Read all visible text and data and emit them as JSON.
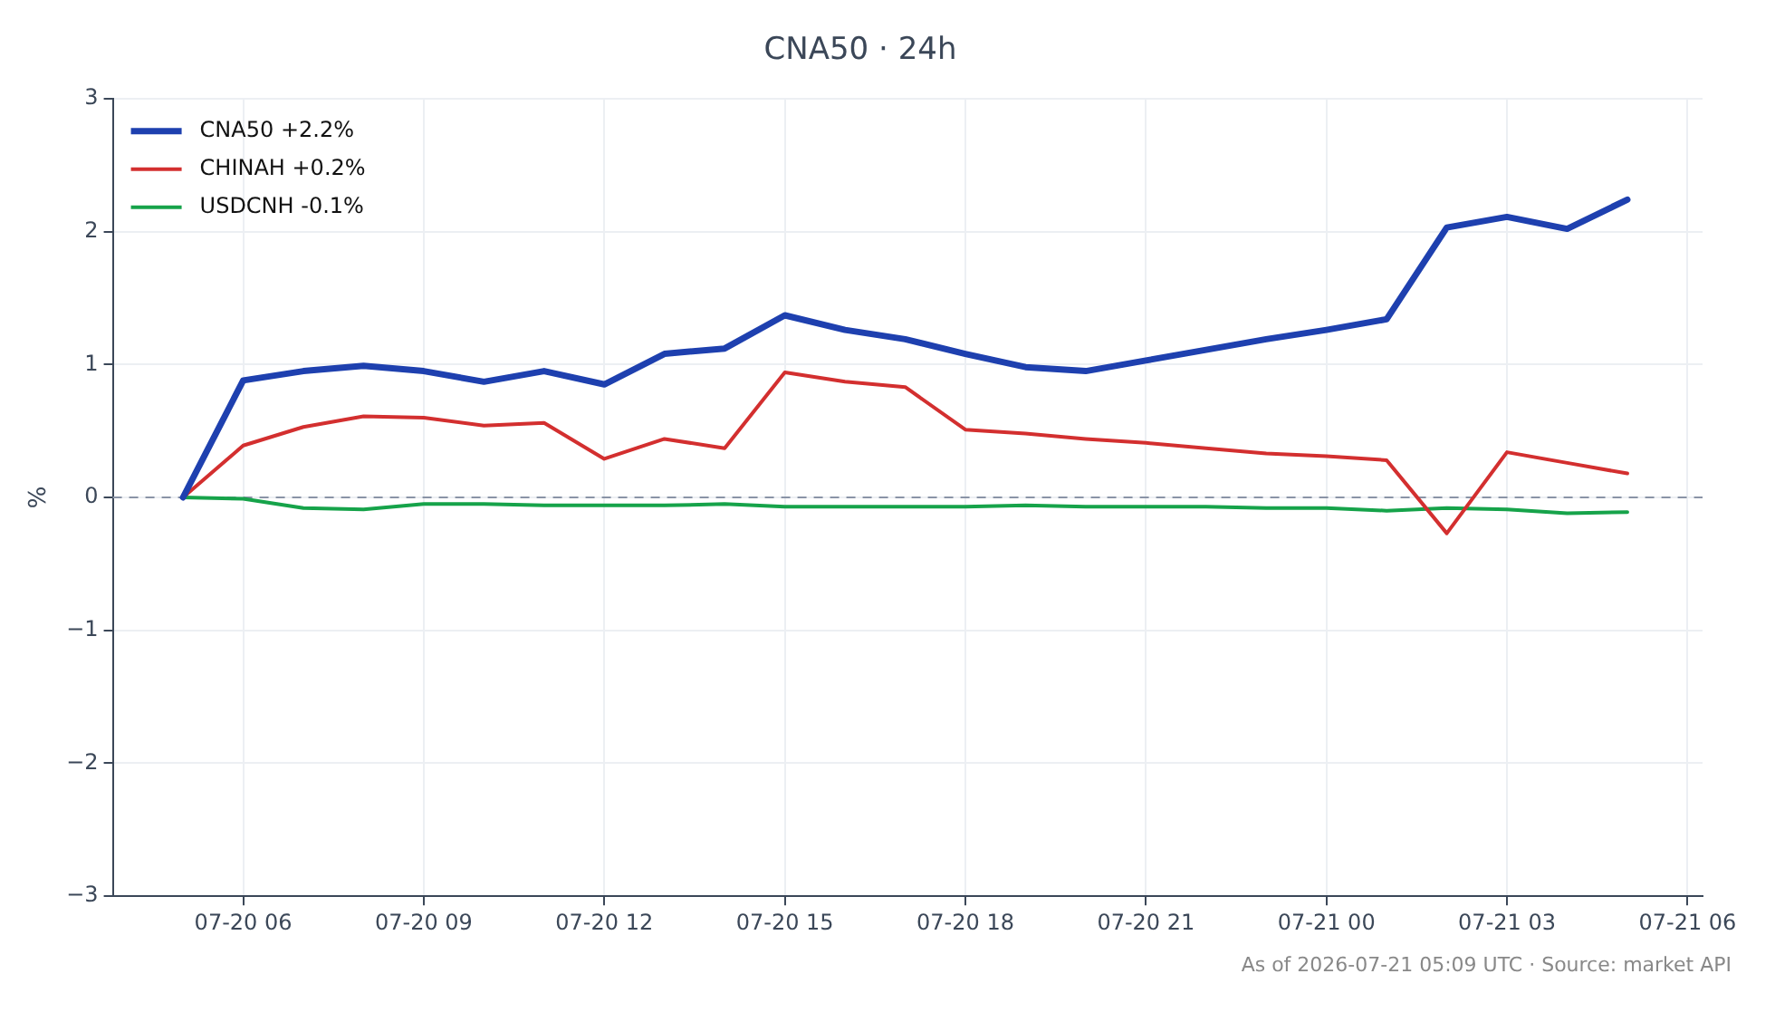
{
  "chart_data": {
    "type": "line",
    "title": "CNA50 · 24h",
    "ylabel": "%",
    "x": [
      "2026-07-20T05:00",
      "2026-07-20T06:00",
      "2026-07-20T07:00",
      "2026-07-20T08:00",
      "2026-07-20T09:00",
      "2026-07-20T10:00",
      "2026-07-20T11:00",
      "2026-07-20T12:00",
      "2026-07-20T13:00",
      "2026-07-20T14:00",
      "2026-07-20T15:00",
      "2026-07-20T16:00",
      "2026-07-20T17:00",
      "2026-07-20T18:00",
      "2026-07-20T19:00",
      "2026-07-20T20:00",
      "2026-07-20T21:00",
      "2026-07-20T22:00",
      "2026-07-20T23:00",
      "2026-07-21T00:00",
      "2026-07-21T01:00",
      "2026-07-21T02:00",
      "2026-07-21T03:00",
      "2026-07-21T04:00",
      "2026-07-21T05:00"
    ],
    "series": [
      {
        "name": "CNA50 +2.2%",
        "color": "#1e40af",
        "values": [
          0,
          0.88,
          0.95,
          0.99,
          0.95,
          0.87,
          0.95,
          0.85,
          1.08,
          1.12,
          1.37,
          1.26,
          1.19,
          1.08,
          0.98,
          0.95,
          1.03,
          1.11,
          1.19,
          1.26,
          1.34,
          2.03,
          2.11,
          2.02,
          2.24
        ]
      },
      {
        "name": "CHINAH +0.2%",
        "color": "#d32f2f",
        "values": [
          0,
          0.39,
          0.53,
          0.61,
          0.6,
          0.54,
          0.56,
          0.29,
          0.44,
          0.37,
          0.94,
          0.87,
          0.83,
          0.51,
          0.48,
          0.44,
          0.41,
          0.37,
          0.33,
          0.31,
          0.28,
          -0.27,
          0.34,
          0.26,
          0.18
        ]
      },
      {
        "name": "USDCNH -0.1%",
        "color": "#16a34a",
        "values": [
          0,
          -0.01,
          -0.08,
          -0.09,
          -0.05,
          -0.05,
          -0.06,
          -0.06,
          -0.06,
          -0.05,
          -0.07,
          -0.07,
          -0.07,
          -0.07,
          -0.06,
          -0.07,
          -0.07,
          -0.07,
          -0.08,
          -0.08,
          -0.1,
          -0.08,
          -0.09,
          -0.12,
          -0.11
        ]
      }
    ],
    "xlim": [
      "2026-07-20T03:50",
      "2026-07-21T06:15"
    ],
    "xticks": [
      {
        "value": "2026-07-20T06:00",
        "label": "07-20 06"
      },
      {
        "value": "2026-07-20T09:00",
        "label": "07-20 09"
      },
      {
        "value": "2026-07-20T12:00",
        "label": "07-20 12"
      },
      {
        "value": "2026-07-20T15:00",
        "label": "07-20 15"
      },
      {
        "value": "2026-07-20T18:00",
        "label": "07-20 18"
      },
      {
        "value": "2026-07-20T21:00",
        "label": "07-20 21"
      },
      {
        "value": "2026-07-21T00:00",
        "label": "07-21 00"
      },
      {
        "value": "2026-07-21T03:00",
        "label": "07-21 03"
      },
      {
        "value": "2026-07-21T06:00",
        "label": "07-21 06"
      }
    ],
    "ylim": [
      -3,
      3
    ],
    "yticks": [
      {
        "value": -3,
        "label": "−3"
      },
      {
        "value": -2,
        "label": "−2"
      },
      {
        "value": -1,
        "label": "−1"
      },
      0,
      1,
      2,
      3
    ],
    "ref_lines": [
      {
        "axis": "y",
        "value": 0,
        "color": "#8a94a6",
        "line_style": "dashed"
      }
    ],
    "grid": true,
    "legend": "top left",
    "marker": "none",
    "line_style": "solid",
    "annotations": [
      "As of 2026-07-21 05:09 UTC · Source: market API"
    ]
  }
}
